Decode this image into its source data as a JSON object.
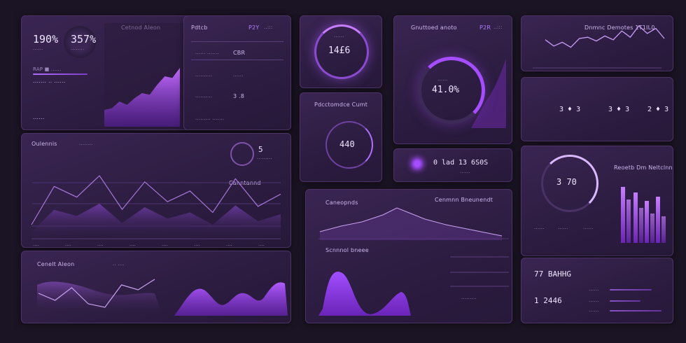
{
  "colors": {
    "background": "#1b1424",
    "panel": "#2f1f44",
    "accent": "#a64dff",
    "accent_bright": "#c77dff",
    "text": "#d9c8ee"
  },
  "p1": {
    "stat_a": "190%",
    "stat_a_sub": "......",
    "stat_b": "357%",
    "stat_b_sub": "........",
    "title": "Cetnod Aleon",
    "row1": "RAP ■ ......",
    "row2": "....... .. ......",
    "row3": "......"
  },
  "p2": {
    "title": "Pdtcb",
    "tag": "P2Y",
    "tag2": "..:::",
    "rows": [
      {
        "label": "...... .......",
        "value": "CBR"
      },
      {
        "label": "..........",
        "value": "......"
      },
      {
        "label": "..........",
        "value": "3 .8"
      },
      {
        "label": "......... .......",
        "value": ""
      }
    ]
  },
  "p3": {
    "title": "Oulennis",
    "sub": "........",
    "value": "5",
    "value_sub": ".........",
    "callout": "Canntannd",
    "xticks": [
      "....",
      "....",
      "....",
      "....",
      "....",
      "....",
      "....",
      "...."
    ]
  },
  "p4": {
    "title": "Cenelt Aleon",
    "tag": ".. ....",
    "legend": [
      "......",
      "......",
      "......"
    ]
  },
  "p5": {
    "value": "14£6",
    "sub": "......"
  },
  "p6": {
    "title": "Pdcctomdce Cumt",
    "value": "440",
    "sub": "......"
  },
  "p7": {
    "title": "Gnuttoed anoto",
    "tabs": [
      "P2R",
      "..:::"
    ],
    "value": "41.0%",
    "value_sub": "......",
    "stat1": "0 lad",
    "stat2": "13 6S0S",
    "stat2_sub": "......"
  },
  "p8": {
    "title": "Dnmnc Demotes 1T1IL0"
  },
  "p9": {
    "stats": [
      "3 ♦ 3",
      "3 ♦ 3",
      "2 ♦ 3"
    ]
  },
  "p10": {
    "title": "Reoetb Dm Neltclnnes",
    "value": "3 70",
    "labels": [
      "......",
      "......",
      "......"
    ]
  },
  "p11": {
    "title": "Caneopnds",
    "title2": "Cenmnn Bneunendt",
    "subtitle": "Scnnnol bneee",
    "foot": "........."
  },
  "p12": {
    "value1": "77 BAHHG",
    "value2": "1 2446",
    "rows": [
      "......",
      "......",
      "......",
      "......"
    ]
  },
  "chart_data": [
    {
      "type": "area",
      "values": [
        20,
        22,
        30,
        26,
        34,
        40,
        38,
        50,
        60,
        58,
        70
      ]
    },
    {
      "type": "line",
      "series": [
        {
          "values": [
            30,
            55,
            48,
            62,
            40,
            58,
            45,
            52,
            38,
            60,
            42,
            50
          ]
        }
      ]
    },
    {
      "type": "line",
      "values": [
        60,
        50,
        68,
        45,
        40,
        72,
        65,
        80
      ]
    }
  ]
}
